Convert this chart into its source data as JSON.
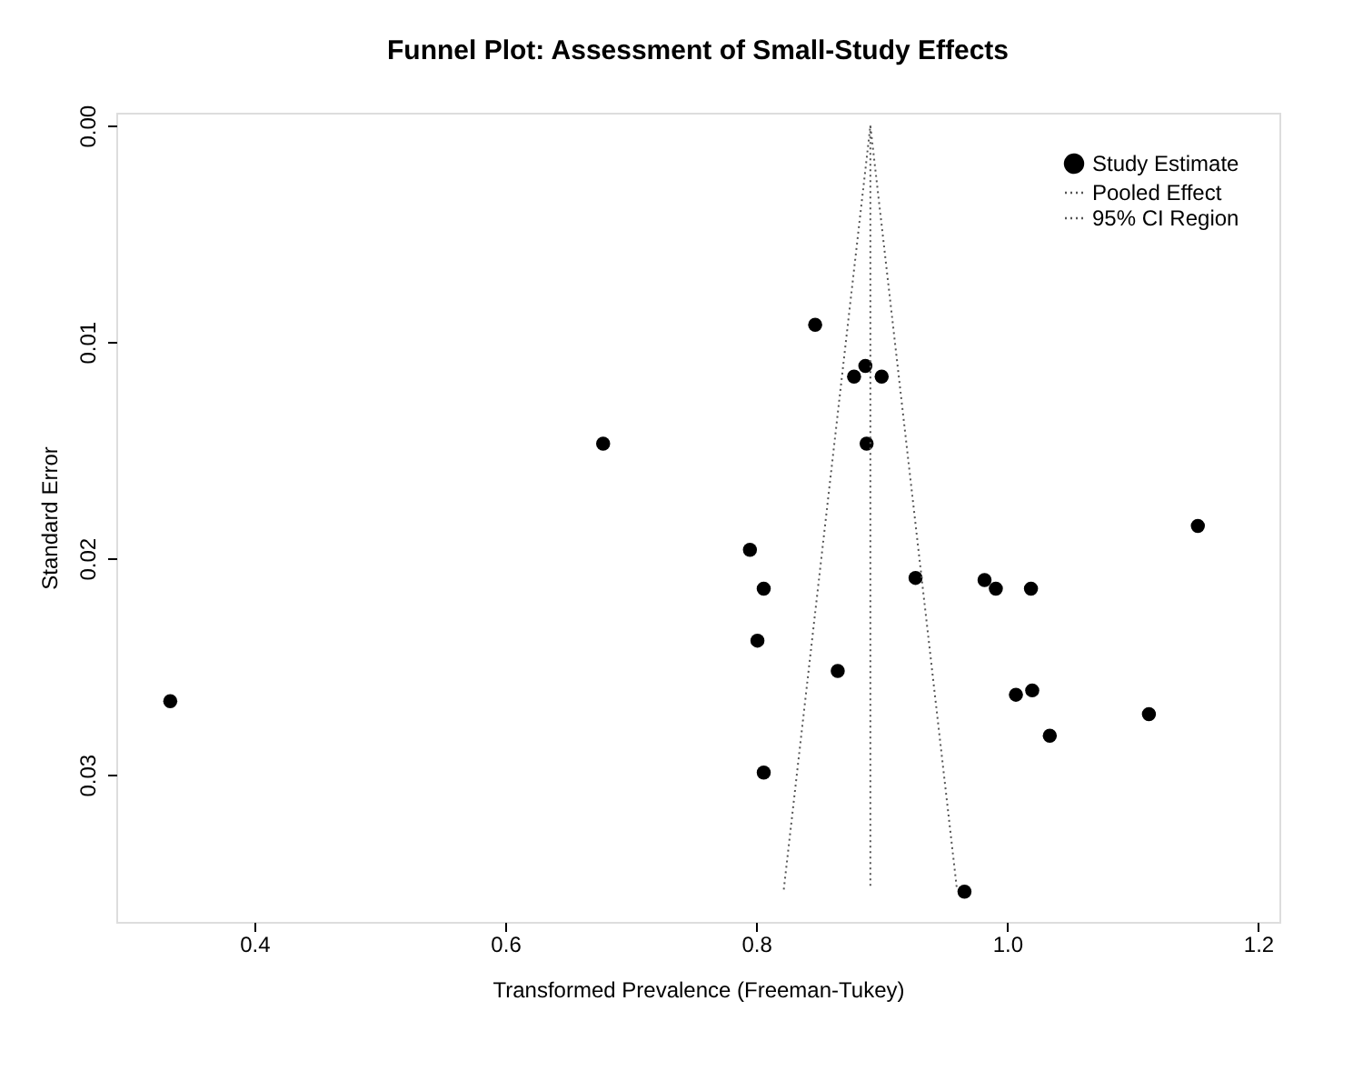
{
  "chart_data": {
    "type": "scatter",
    "title": "Funnel Plot: Assessment of Small-Study Effects",
    "xlabel": "Transformed Prevalence (Freeman-Tukey)",
    "ylabel": "Standard Error",
    "xlim": [
      0.29,
      1.217
    ],
    "xticks": [
      0.4,
      0.6,
      0.8,
      {
        "value": 1.0,
        "label": "1.0"
      },
      1.2
    ],
    "ylim": [
      0.0368,
      -0.0006
    ],
    "yticks": [
      {
        "value": 0.0,
        "label": "0.00"
      },
      0.01,
      0.02,
      0.03
    ],
    "grid": false,
    "legend": "top right",
    "marker": "circle",
    "series": [
      {
        "name": "Study Estimate",
        "color": "#000000",
        "x": [
          0.847,
          0.887,
          0.878,
          0.9,
          0.888,
          0.795,
          0.927,
          0.806,
          0.982,
          0.991,
          1.019,
          0.801,
          0.865,
          1.007,
          1.02,
          1.034,
          0.806,
          0.966,
          0.333,
          0.678,
          1.152,
          1.113
        ],
        "values": [
          0.0092,
          0.0111,
          0.0116,
          0.0116,
          0.0147,
          0.0196,
          0.0209,
          0.0214,
          0.021,
          0.0214,
          0.0214,
          0.0238,
          0.0252,
          0.0263,
          0.0261,
          0.0282,
          0.0299,
          0.0354,
          0.0266,
          0.0147,
          0.0185,
          0.0272
        ]
      },
      {
        "name": "Pooled Effect",
        "type": "line",
        "marker": "none",
        "color": "#555555",
        "line_style": "dotted",
        "x": [
          0.891,
          0.891
        ],
        "values": [
          0.0,
          0.0353
        ]
      },
      {
        "name": "95% CI Region",
        "type": "line",
        "marker": "none",
        "color": "#555555",
        "line_style": "dotted",
        "x": [
          0.822,
          0.891,
          0.96
        ],
        "values": [
          0.0353,
          0.0,
          0.0353
        ]
      }
    ]
  }
}
